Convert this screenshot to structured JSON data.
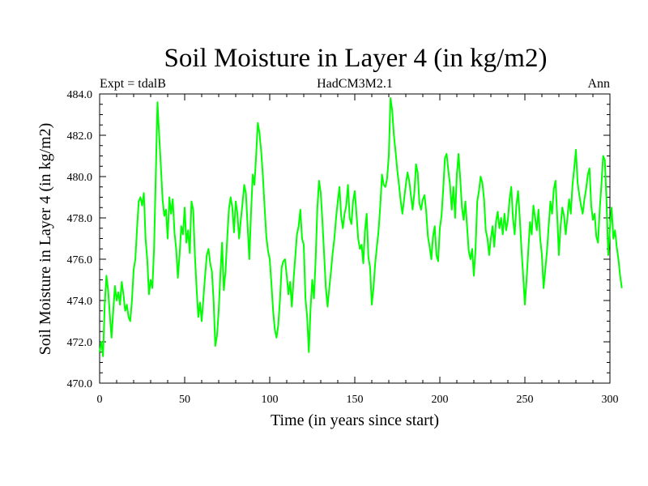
{
  "chart_data": {
    "type": "line",
    "title": "Soil Moisture in Layer 4 (in kg/m2)",
    "subtitle_left": "Expt = tdalB",
    "subtitle_center": "HadCM3M2.1",
    "subtitle_right": "Ann",
    "xlabel": "Time (in years since start)",
    "ylabel": "Soil Moisture in Layer 4 (in kg/m2)",
    "xlim": [
      0,
      300
    ],
    "ylim": [
      470,
      484
    ],
    "x_ticks": [
      0,
      50,
      100,
      150,
      200,
      250,
      300
    ],
    "x_tick_labels": [
      "0",
      "50",
      "100",
      "150",
      "200",
      "250",
      "300"
    ],
    "y_ticks": [
      470,
      472,
      474,
      476,
      478,
      480,
      482,
      484
    ],
    "y_tick_labels": [
      "470.0",
      "472.0",
      "474.0",
      "476.0",
      "478.0",
      "480.0",
      "482.0",
      "484.0"
    ],
    "x_minor_step": 10,
    "y_minor_step": 0.5,
    "grid": false,
    "series": [
      {
        "name": "Soil Moisture",
        "color": "#00ff00",
        "x_start": 0,
        "x_step": 1,
        "values": [
          471.5,
          472.0,
          471.3,
          473.8,
          475.2,
          474.5,
          473.3,
          472.2,
          473.5,
          474.7,
          474.0,
          474.4,
          473.8,
          474.9,
          474.3,
          473.5,
          473.8,
          473.2,
          473.0,
          474.0,
          475.5,
          476.0,
          477.5,
          478.8,
          479.0,
          478.6,
          479.2,
          477.0,
          476.0,
          474.3,
          475.0,
          474.6,
          476.5,
          480.0,
          483.6,
          482.0,
          480.5,
          478.9,
          478.1,
          478.4,
          477.0,
          479.0,
          478.2,
          478.9,
          477.3,
          476.5,
          475.1,
          476.2,
          477.6,
          477.2,
          478.5,
          476.8,
          477.4,
          476.3,
          478.8,
          478.4,
          476.2,
          474.6,
          473.2,
          473.9,
          473.0,
          474.1,
          475.2,
          476.2,
          476.5,
          475.8,
          475.4,
          474.0,
          471.8,
          472.3,
          473.5,
          475.3,
          476.8,
          474.5,
          475.4,
          477.0,
          478.4,
          479.0,
          478.5,
          477.3,
          478.8,
          478.2,
          477.0,
          477.9,
          478.7,
          479.6,
          479.2,
          477.6,
          476.0,
          478.2,
          480.1,
          479.6,
          481.0,
          482.6,
          482.1,
          481.2,
          480.0,
          478.5,
          477.1,
          476.4,
          476.0,
          474.8,
          473.5,
          472.6,
          472.2,
          472.8,
          474.0,
          475.6,
          475.9,
          476.0,
          475.2,
          474.3,
          474.9,
          473.7,
          475.0,
          476.1,
          477.2,
          477.6,
          478.4,
          477.0,
          476.7,
          474.1,
          473.2,
          471.5,
          473.6,
          475.0,
          474.1,
          476.0,
          478.5,
          479.8,
          479.2,
          477.8,
          476.2,
          474.6,
          473.7,
          474.6,
          475.4,
          476.3,
          477.0,
          478.0,
          478.8,
          479.5,
          478.1,
          477.5,
          478.2,
          478.6,
          479.6,
          478.0,
          477.7,
          478.8,
          479.3,
          478.2,
          477.0,
          476.5,
          476.7,
          475.8,
          477.4,
          478.2,
          476.1,
          475.6,
          473.8,
          474.6,
          475.8,
          476.6,
          477.4,
          478.6,
          480.1,
          479.6,
          479.5,
          479.9,
          481.0,
          483.8,
          483.2,
          482.0,
          481.2,
          480.3,
          479.6,
          478.8,
          478.2,
          478.9,
          479.6,
          480.2,
          479.8,
          479.1,
          478.4,
          479.2,
          480.6,
          480.2,
          478.7,
          478.4,
          478.9,
          479.1,
          478.3,
          477.1,
          476.6,
          476.0,
          477.1,
          477.6,
          476.2,
          475.9,
          477.5,
          478.1,
          479.4,
          480.9,
          481.1,
          480.3,
          479.6,
          478.4,
          479.5,
          478.0,
          480.1,
          481.1,
          479.9,
          478.5,
          477.9,
          478.8,
          477.6,
          476.4,
          476.0,
          476.5,
          475.2,
          476.5,
          478.8,
          479.3,
          480.0,
          479.7,
          478.9,
          477.4,
          477.0,
          476.2,
          477.0,
          477.6,
          476.6,
          477.8,
          478.3,
          477.5,
          478.0,
          477.2,
          478.2,
          477.4,
          477.9,
          478.9,
          479.5,
          478.0,
          477.2,
          478.6,
          479.3,
          478.0,
          476.5,
          475.2,
          473.8,
          475.0,
          476.4,
          477.8,
          477.2,
          478.6,
          478.0,
          477.4,
          478.4,
          477.0,
          476.2,
          474.6,
          475.5,
          476.4,
          477.6,
          478.8,
          478.2,
          479.4,
          479.8,
          478.1,
          476.2,
          477.6,
          478.5,
          478.1,
          477.2,
          478.0,
          478.9,
          478.2,
          479.6,
          480.4,
          481.3,
          479.7,
          479.1,
          478.6,
          478.2,
          478.9,
          479.4,
          480.1,
          480.4,
          478.6,
          477.9,
          478.2,
          477.1,
          476.8,
          478.4,
          479.6,
          481.0,
          480.8,
          478.8,
          476.2,
          477.5,
          478.5,
          477.0,
          477.4,
          476.6,
          476.0,
          475.2,
          474.6
        ]
      }
    ]
  }
}
